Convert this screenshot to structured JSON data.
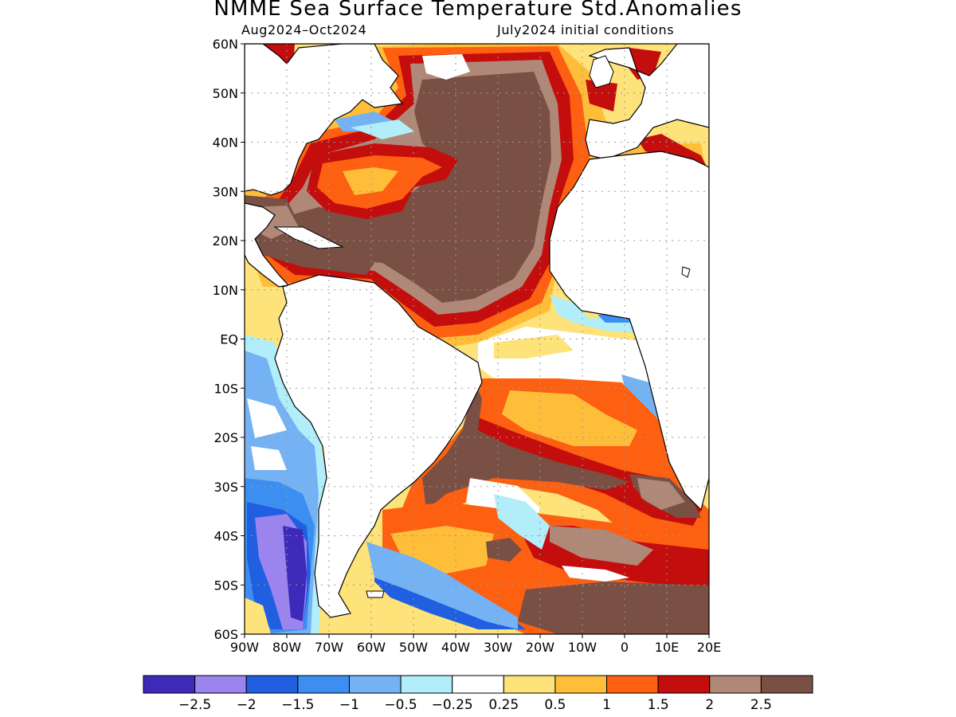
{
  "header": {
    "title": "NMME Sea Surface Temperature Std.Anomalies",
    "period": "Aug2024–Oct2024",
    "initial_conditions": "July2024 initial conditions"
  },
  "map": {
    "lat_ticks": [
      "60N",
      "50N",
      "40N",
      "30N",
      "20N",
      "10N",
      "EQ",
      "10S",
      "20S",
      "30S",
      "40S",
      "50S",
      "60S"
    ],
    "lon_ticks": [
      "90W",
      "80W",
      "70W",
      "60W",
      "50W",
      "40W",
      "30W",
      "20W",
      "10W",
      "0",
      "10E",
      "20E"
    ]
  },
  "colorbar": {
    "colors": [
      "#3d2ab8",
      "#9b84ee",
      "#1f5fe0",
      "#3c8ff0",
      "#74b2f4",
      "#b1eefa",
      "#ffffff",
      "#fee27a",
      "#ffbe3a",
      "#fd6010",
      "#c40d0d",
      "#b08878",
      "#7a4f44"
    ],
    "labels": [
      "−2.5",
      "−2",
      "−1.5",
      "−1",
      "−0.5",
      "−0.25",
      "0.25",
      "0.5",
      "1",
      "1.5",
      "2",
      "2.5"
    ]
  },
  "legend_colors": {
    "land": "#ffffff",
    "coast": "#000000",
    "grid": "#9a9a9a"
  }
}
